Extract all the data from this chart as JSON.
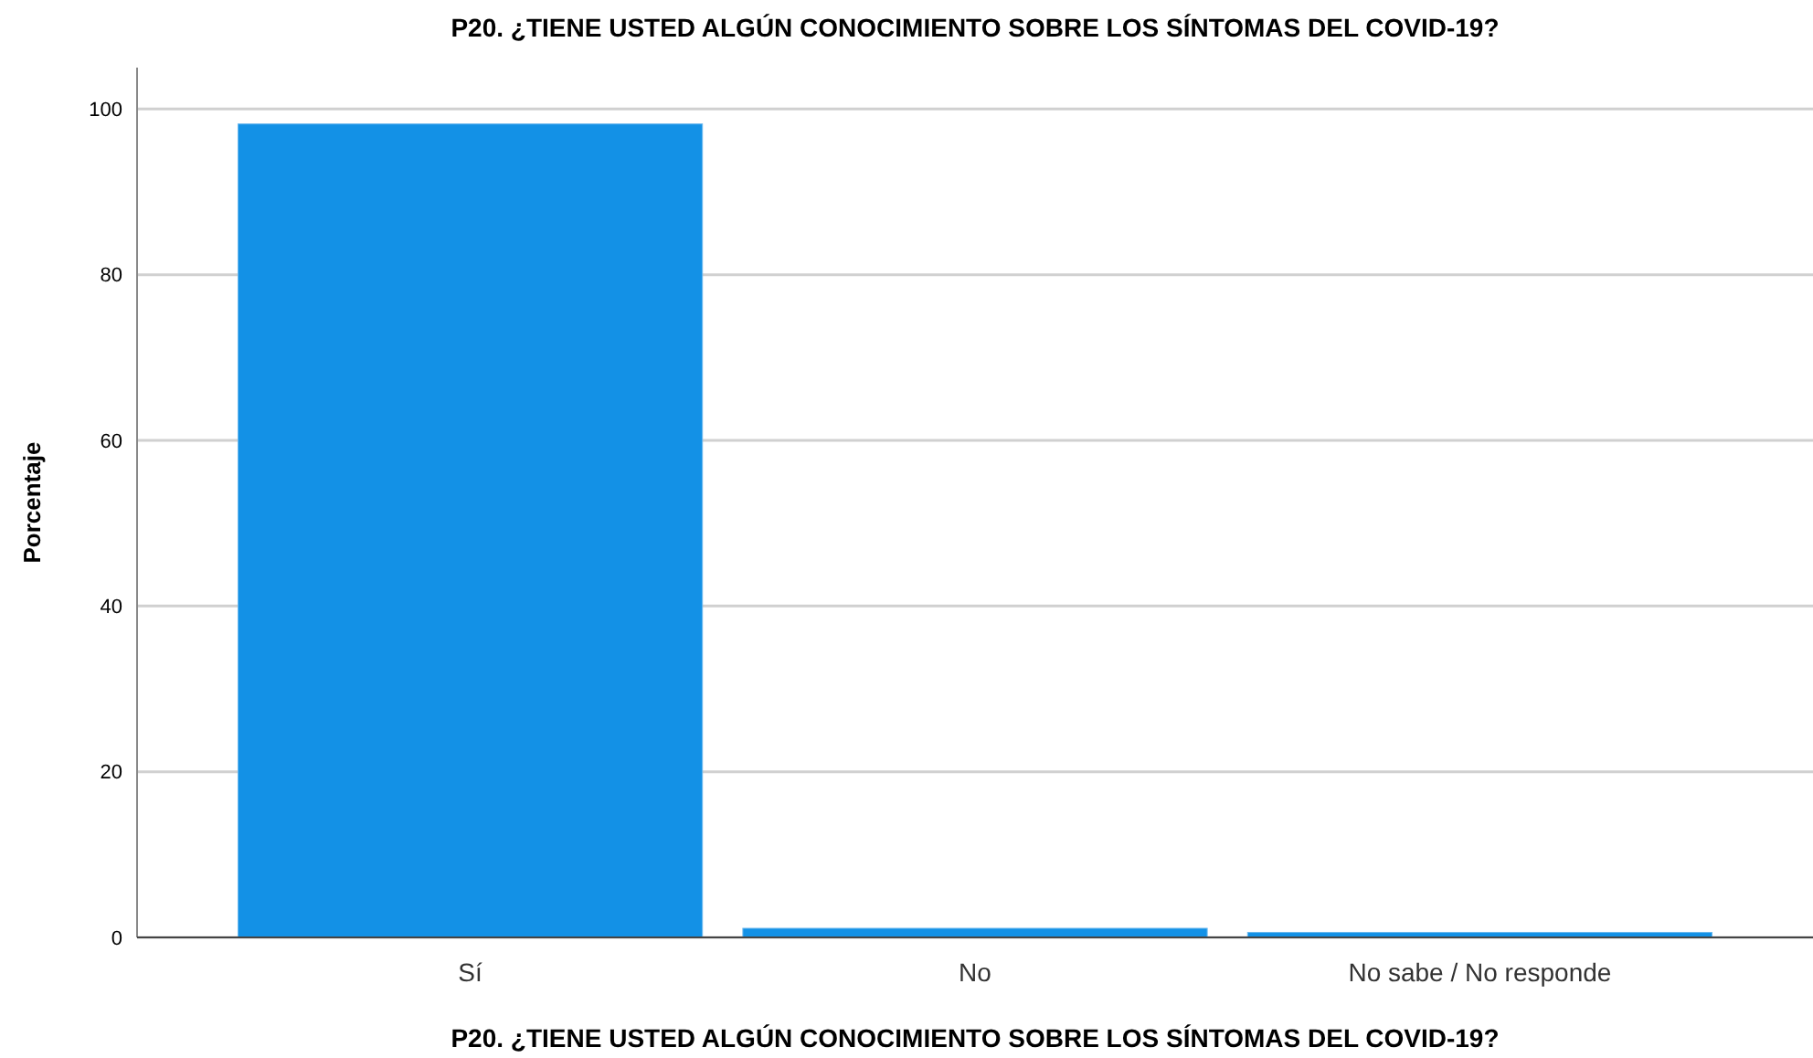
{
  "chart_data": {
    "type": "bar",
    "title": "P20. ¿TIENE USTED ALGÚN CONOCIMIENTO SOBRE LOS SÍNTOMAS DEL COVID-19?",
    "xlabel": "P20. ¿TIENE USTED ALGÚN CONOCIMIENTO SOBRE LOS SÍNTOMAS DEL COVID-19?",
    "ylabel": "Porcentaje",
    "categories": [
      "Sí",
      "No",
      "No sabe / No responde"
    ],
    "values": [
      98.2,
      1.1,
      0.6
    ],
    "color": "#1391e6",
    "ylim": [
      0,
      105
    ],
    "yticks": [
      0,
      20,
      40,
      60,
      80,
      100
    ],
    "grid": "y"
  }
}
